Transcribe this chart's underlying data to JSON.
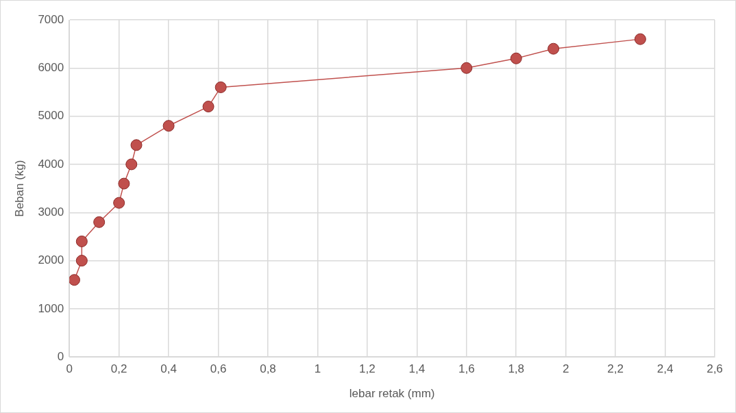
{
  "chart_data": {
    "type": "line",
    "xlabel": "lebar retak (mm)",
    "ylabel": "Beban (kg)",
    "x": [
      0.02,
      0.05,
      0.05,
      0.12,
      0.2,
      0.22,
      0.25,
      0.27,
      0.4,
      0.56,
      0.61,
      1.6,
      1.8,
      1.95,
      2.3
    ],
    "series": [
      {
        "color": "#c0504d",
        "values": [
          1600,
          2000,
          2400,
          2800,
          3200,
          3600,
          4000,
          4400,
          4800,
          5200,
          5600,
          6000,
          6200,
          6400,
          6600
        ]
      }
    ],
    "xlim": [
      0,
      2.6
    ],
    "xticks": [
      {
        "value": 0,
        "label": "0"
      },
      {
        "value": 0.2,
        "label": "0,2"
      },
      {
        "value": 0.4,
        "label": "0,4"
      },
      {
        "value": 0.6,
        "label": "0,6"
      },
      {
        "value": 0.8,
        "label": "0,8"
      },
      {
        "value": 1,
        "label": "1"
      },
      {
        "value": 1.2,
        "label": "1,2"
      },
      {
        "value": 1.4,
        "label": "1,4"
      },
      {
        "value": 1.6,
        "label": "1,6"
      },
      {
        "value": 1.8,
        "label": "1,8"
      },
      {
        "value": 2,
        "label": "2"
      },
      {
        "value": 2.2,
        "label": "2,2"
      },
      {
        "value": 2.4,
        "label": "2,4"
      },
      {
        "value": 2.6,
        "label": "2,6"
      }
    ],
    "ylim": [
      0,
      7000
    ],
    "yticks": [
      0,
      1000,
      2000,
      3000,
      4000,
      5000,
      6000,
      7000
    ],
    "grid": true,
    "legend": false,
    "marker": "circle",
    "line_style": "solid"
  }
}
